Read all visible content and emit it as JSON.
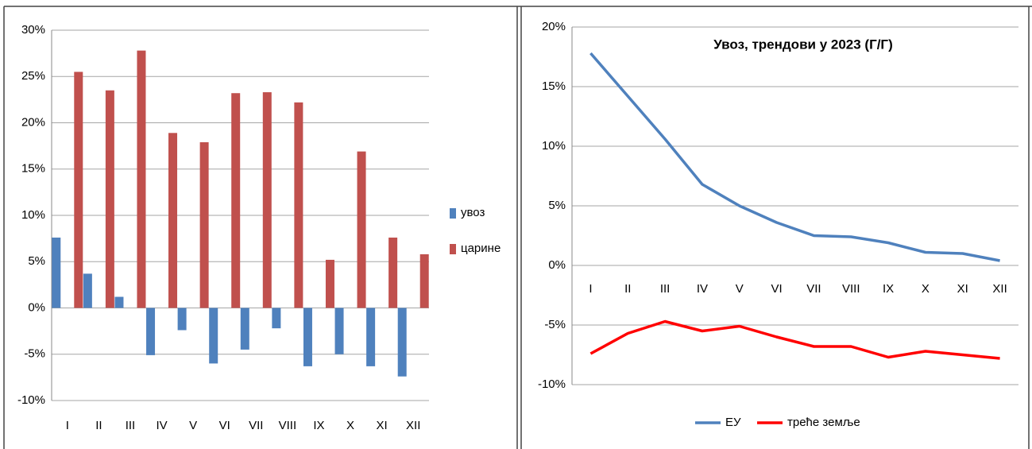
{
  "chart_data": [
    {
      "type": "bar",
      "categories": [
        "I",
        "II",
        "III",
        "IV",
        "V",
        "VI",
        "VII",
        "VIII",
        "IX",
        "X",
        "XI",
        "XII"
      ],
      "series": [
        {
          "name": "увоз",
          "color": "#4f81bd",
          "values": [
            7.6,
            3.7,
            1.2,
            -5.1,
            -2.4,
            -6.0,
            -4.5,
            -2.2,
            -6.3,
            -5.0,
            -6.3,
            -7.4
          ]
        },
        {
          "name": "царине",
          "color": "#c0504d",
          "values": [
            25.5,
            23.5,
            27.8,
            18.9,
            17.9,
            23.2,
            23.3,
            22.2,
            5.2,
            16.9,
            7.6,
            5.8
          ]
        }
      ],
      "ylim": [
        -10,
        30
      ],
      "yticks": [
        {
          "value": -10,
          "label": "-10%"
        },
        {
          "value": -5,
          "label": "-5%"
        },
        {
          "value": 0,
          "label": "0%"
        },
        {
          "value": 5,
          "label": "5%"
        },
        {
          "value": 10,
          "label": "10%"
        },
        {
          "value": 15,
          "label": "15%"
        },
        {
          "value": 20,
          "label": "20%"
        },
        {
          "value": 25,
          "label": "25%"
        },
        {
          "value": 30,
          "label": "30%"
        }
      ],
      "grid": true,
      "legend": "right"
    },
    {
      "type": "line",
      "title": "Увоз, трендови у 2023 (Г/Г)",
      "categories": [
        "I",
        "II",
        "III",
        "IV",
        "V",
        "VI",
        "VII",
        "VIII",
        "IX",
        "X",
        "XI",
        "XII"
      ],
      "series": [
        {
          "name": "ЕУ",
          "color": "#4f81bd",
          "values": [
            17.8,
            14.2,
            10.6,
            6.8,
            5.0,
            3.6,
            2.5,
            2.4,
            1.9,
            1.1,
            1.0,
            0.4
          ]
        },
        {
          "name": "треће земље",
          "color": "#ff0000",
          "values": [
            -7.4,
            -5.7,
            -4.7,
            -5.5,
            -5.1,
            -6.0,
            -6.8,
            -6.8,
            -7.7,
            -7.2,
            -7.5,
            -7.8
          ]
        }
      ],
      "ylim": [
        -10,
        20
      ],
      "yticks": [
        {
          "value": -10,
          "label": "-10%"
        },
        {
          "value": -5,
          "label": "-5%"
        },
        {
          "value": 0,
          "label": "0%"
        },
        {
          "value": 5,
          "label": "5%"
        },
        {
          "value": 10,
          "label": "10%"
        },
        {
          "value": 15,
          "label": "15%"
        },
        {
          "value": 20,
          "label": "20%"
        }
      ],
      "grid": true,
      "legend": "bottom"
    }
  ]
}
